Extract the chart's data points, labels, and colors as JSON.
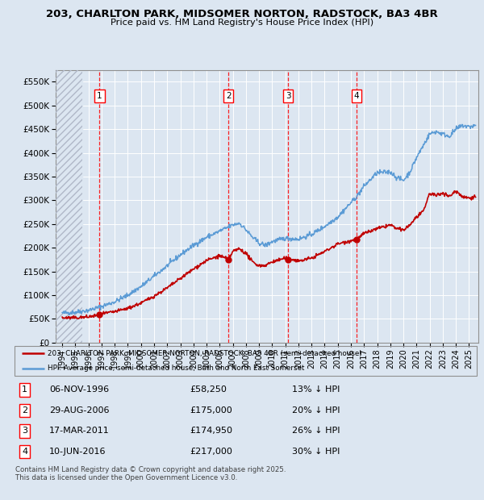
{
  "title_line1": "203, CHARLTON PARK, MIDSOMER NORTON, RADSTOCK, BA3 4BR",
  "title_line2": "Price paid vs. HM Land Registry's House Price Index (HPI)",
  "ylabel_ticks": [
    "£0",
    "£50K",
    "£100K",
    "£150K",
    "£200K",
    "£250K",
    "£300K",
    "£350K",
    "£400K",
    "£450K",
    "£500K",
    "£550K"
  ],
  "ytick_values": [
    0,
    50000,
    100000,
    150000,
    200000,
    250000,
    300000,
    350000,
    400000,
    450000,
    500000,
    550000
  ],
  "ylim": [
    0,
    575000
  ],
  "xlim_start": 1993.5,
  "xlim_end": 2025.7,
  "sale_dates_decimal": [
    1996.85,
    2006.66,
    2011.21,
    2016.44
  ],
  "sale_prices": [
    58250,
    175000,
    174950,
    217000
  ],
  "sale_labels": [
    "1",
    "2",
    "3",
    "4"
  ],
  "sale_date_strings": [
    "06-NOV-1996",
    "29-AUG-2006",
    "17-MAR-2011",
    "10-JUN-2016"
  ],
  "sale_price_strings": [
    "£58,250",
    "£175,000",
    "£174,950",
    "£217,000"
  ],
  "sale_hpi_strings": [
    "13% ↓ HPI",
    "20% ↓ HPI",
    "26% ↓ HPI",
    "30% ↓ HPI"
  ],
  "hpi_color": "#5b9bd5",
  "price_color": "#c00000",
  "background_color": "#dce6f1",
  "plot_bg_color": "#dce6f1",
  "grid_color": "#ffffff",
  "hatch_color": "#b0b8c8",
  "vline_color": "#ff0000",
  "legend1_label": "203, CHARLTON PARK, MIDSOMER NORTON, RADSTOCK, BA3 4BR (semi-detached house)",
  "legend2_label": "HPI: Average price, semi-detached house, Bath and North East Somerset",
  "footer": "Contains HM Land Registry data © Crown copyright and database right 2025.\nThis data is licensed under the Open Government Licence v3.0.",
  "hpi_anchors_x": [
    1994,
    1995,
    1996,
    1997,
    1998,
    1999,
    2000,
    2001,
    2002,
    2003,
    2004,
    2005,
    2006,
    2007,
    2007.5,
    2008,
    2008.5,
    2009,
    2009.5,
    2010,
    2011,
    2012,
    2013,
    2014,
    2015,
    2016,
    2016.5,
    2017,
    2018,
    2019,
    2019.5,
    2020,
    2020.5,
    2021,
    2021.5,
    2022,
    2022.5,
    2023,
    2023.5,
    2024,
    2024.5,
    2025,
    2025.5
  ],
  "hpi_anchors_y": [
    62000,
    64000,
    68000,
    76000,
    86000,
    100000,
    118000,
    140000,
    162000,
    185000,
    205000,
    222000,
    235000,
    248000,
    252000,
    238000,
    222000,
    210000,
    205000,
    213000,
    220000,
    218000,
    228000,
    245000,
    265000,
    295000,
    310000,
    330000,
    358000,
    360000,
    348000,
    342000,
    360000,
    390000,
    415000,
    440000,
    445000,
    440000,
    435000,
    450000,
    458000,
    455000,
    458000
  ],
  "price_anchors_x": [
    1994,
    1995,
    1996,
    1996.85,
    1997,
    1998,
    1999,
    2000,
    2001,
    2002,
    2003,
    2004,
    2005,
    2006,
    2006.66,
    2007,
    2007.5,
    2008,
    2008.5,
    2009,
    2009.5,
    2010,
    2011,
    2011.21,
    2011.5,
    2012,
    2013,
    2014,
    2015,
    2016,
    2016.44,
    2017,
    2018,
    2019,
    2019.5,
    2020,
    2020.5,
    2021,
    2021.5,
    2022,
    2022.5,
    2023,
    2023.5,
    2024,
    2024.5,
    2025,
    2025.5
  ],
  "price_anchors_y": [
    52000,
    52000,
    54000,
    58250,
    60000,
    65000,
    72000,
    83000,
    98000,
    115000,
    135000,
    155000,
    173000,
    183000,
    175000,
    192000,
    198000,
    188000,
    170000,
    162000,
    163000,
    170000,
    178000,
    174950,
    176000,
    172000,
    178000,
    192000,
    208000,
    215000,
    217000,
    230000,
    240000,
    248000,
    240000,
    237000,
    248000,
    265000,
    275000,
    315000,
    310000,
    316000,
    308000,
    320000,
    308000,
    305000,
    308000
  ],
  "noise_seed": 42,
  "hpi_noise_scale": 2500,
  "price_noise_scale": 1800
}
